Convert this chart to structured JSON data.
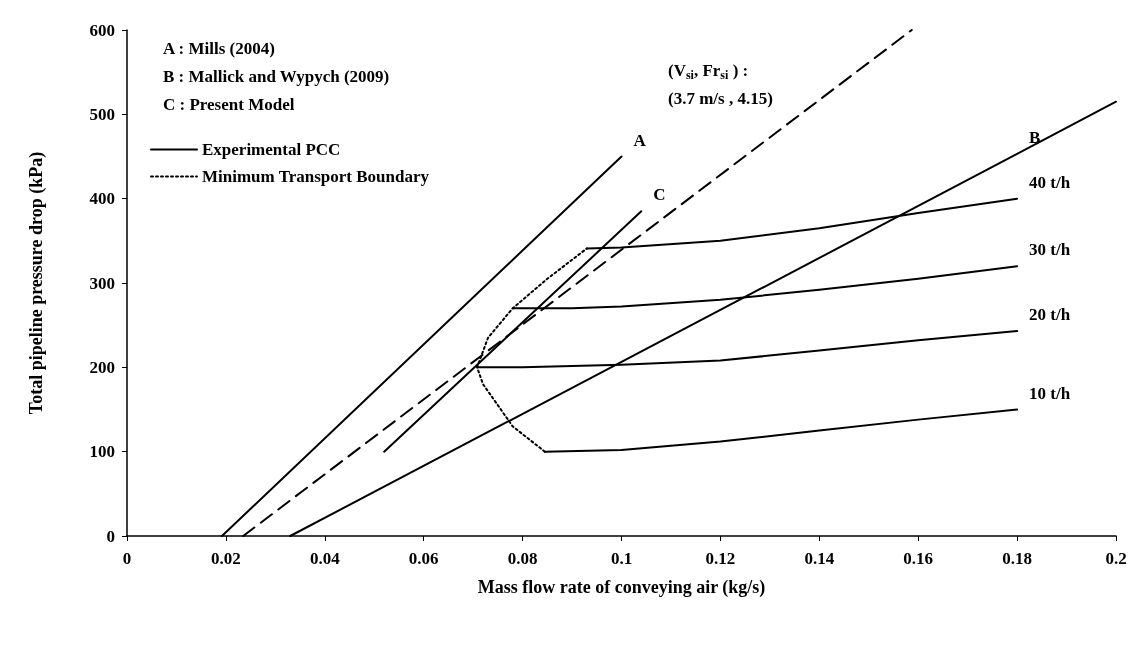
{
  "chart_data": {
    "type": "line",
    "xlabel": "Mass flow rate of conveying air (kg/s)",
    "ylabel": "Total pipeline pressure drop (kPa)",
    "xlim": [
      0,
      0.2
    ],
    "xticks": [
      0,
      0.02,
      0.04,
      0.06,
      0.08,
      0.1,
      0.12,
      0.14,
      0.16,
      0.18,
      0.2
    ],
    "ylim": [
      0,
      600
    ],
    "yticks": [
      0,
      100,
      200,
      300,
      400,
      500,
      600
    ],
    "grid": false,
    "legend": "top left",
    "marker": "none",
    "line_style": "solid",
    "series": [
      {
        "color": "#000000",
        "x": [
          0.0192,
          0.1
        ],
        "values": [
          0,
          450
        ]
      },
      {
        "color": "#000000",
        "x": [
          0.033,
          0.18,
          0.2
        ],
        "values": [
          0,
          453,
          515
        ]
      },
      {
        "color": "#000000",
        "x": [
          0.052,
          0.104
        ],
        "values": [
          100,
          385
        ]
      },
      {
        "color": "#000000",
        "line_style": "dashed",
        "x": [
          0.0235,
          0.1587
        ],
        "values": [
          0,
          600
        ]
      },
      {
        "name": "Experimental PCC",
        "color": "#000000",
        "x": [
          0.0845,
          0.1,
          0.12,
          0.14,
          0.16,
          0.18
        ],
        "values": [
          100,
          102,
          112,
          125,
          138,
          150
        ]
      },
      {
        "color": "#000000",
        "x": [
          0.0708,
          0.08,
          0.1,
          0.12,
          0.14,
          0.16,
          0.18
        ],
        "values": [
          200,
          200,
          203,
          208,
          220,
          232,
          243
        ]
      },
      {
        "color": "#000000",
        "x": [
          0.078,
          0.09,
          0.1,
          0.12,
          0.14,
          0.16,
          0.18
        ],
        "values": [
          270,
          270,
          272,
          280,
          292,
          305,
          320
        ]
      },
      {
        "color": "#000000",
        "x": [
          0.093,
          0.1,
          0.12,
          0.14,
          0.16,
          0.18
        ],
        "values": [
          341,
          342,
          350,
          365,
          383,
          400
        ]
      },
      {
        "name": "Minimum Transport Boundary",
        "color": "#000000",
        "line_style": "dotted",
        "x": [
          0.0845,
          0.078,
          0.072,
          0.0708,
          0.073,
          0.078,
          0.085,
          0.093
        ],
        "values": [
          100,
          130,
          180,
          200,
          235,
          270,
          305,
          341
        ]
      }
    ],
    "annotations": [
      "A : Mills (2004)",
      "B : Mallick and Wypych (2009)",
      "C : Present Model",
      "(V$_{si}$, Fr$_{si}$ ) :",
      "(3.7 m/s , 4.15)",
      {
        "text": "A",
        "x": 0.1,
        "y": 450
      },
      {
        "text": "B",
        "x": 0.18,
        "y": 453
      },
      {
        "text": "C",
        "x": 0.104,
        "y": 385
      },
      {
        "text": "40 t/h",
        "x": 0.18,
        "y": 400
      },
      {
        "text": "30 t/h",
        "x": 0.18,
        "y": 320
      },
      {
        "text": "20 t/h",
        "x": 0.18,
        "y": 243
      },
      {
        "text": "10 t/h",
        "x": 0.18,
        "y": 150
      }
    ]
  }
}
